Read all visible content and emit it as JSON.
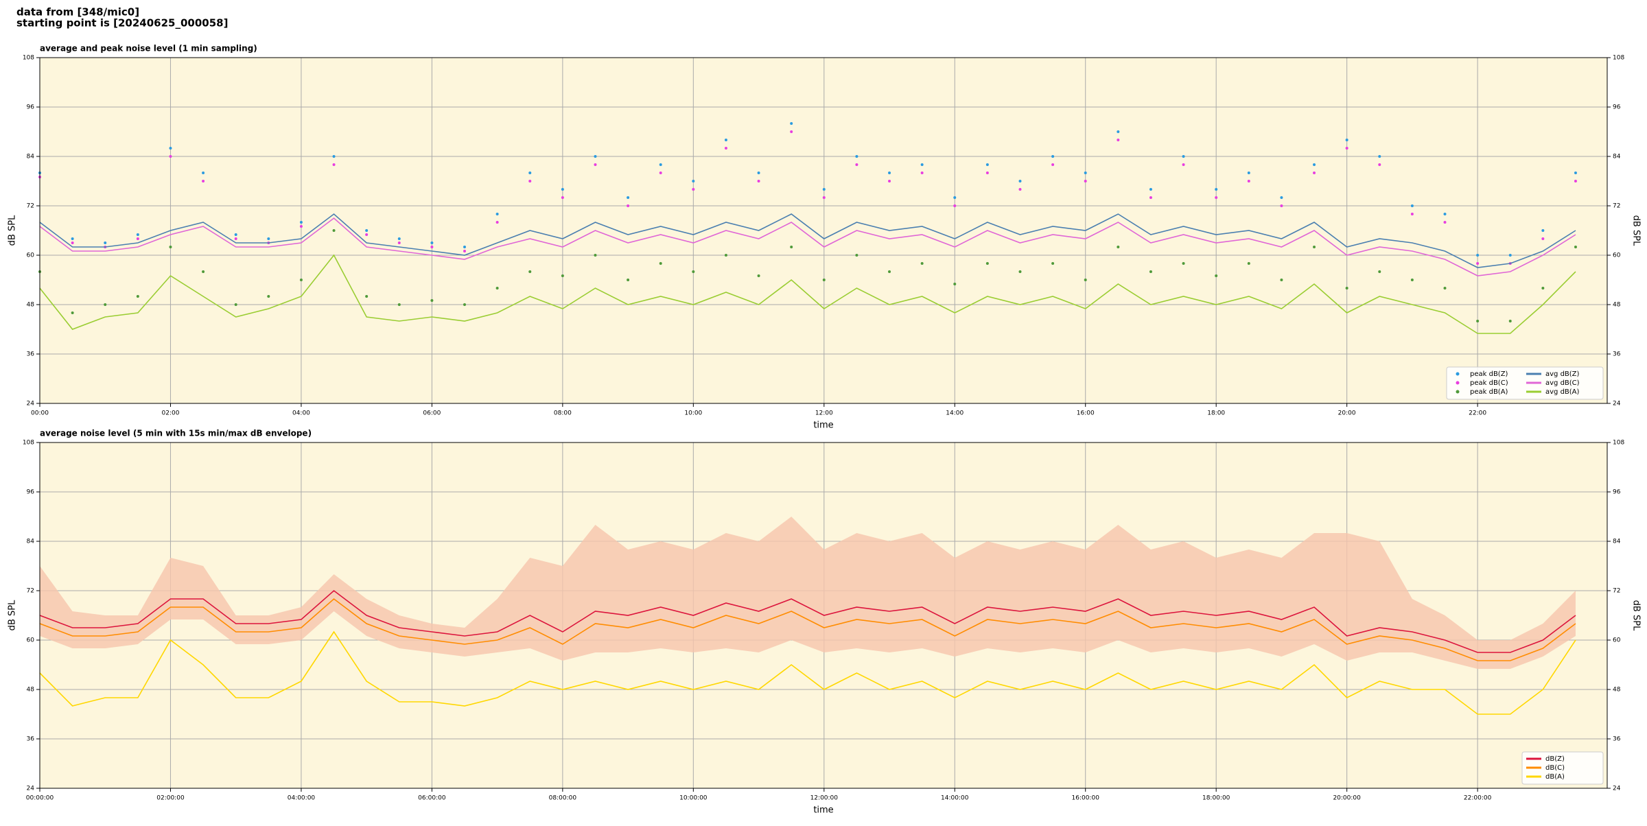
{
  "header": {
    "lines": [
      "data from [348/mic0]",
      "starting point is [20240625_000058]"
    ]
  },
  "chart_data": [
    {
      "type": "line",
      "title": "average and peak noise level (1 min sampling)",
      "x_label": "time",
      "y_label": "dB SPL",
      "y2_label": "dB SPL",
      "xlim": [
        "00:00",
        "23:59"
      ],
      "xticks": [
        "00:00",
        "02:00",
        "04:00",
        "06:00",
        "08:00",
        "10:00",
        "12:00",
        "14:00",
        "16:00",
        "18:00",
        "20:00",
        "22:00"
      ],
      "ylim": [
        24,
        108
      ],
      "yticks": [
        24,
        36,
        48,
        60,
        72,
        84,
        96,
        108
      ],
      "grid": true,
      "legend": "lower right",
      "legend_columns": 2,
      "background": "#fdf6dc",
      "x": [
        "00:00",
        "00:30",
        "01:00",
        "01:30",
        "02:00",
        "02:30",
        "03:00",
        "03:30",
        "04:00",
        "04:30",
        "05:00",
        "05:30",
        "06:00",
        "06:30",
        "07:00",
        "07:30",
        "08:00",
        "08:30",
        "09:00",
        "09:30",
        "10:00",
        "10:30",
        "11:00",
        "11:30",
        "12:00",
        "12:30",
        "13:00",
        "13:30",
        "14:00",
        "14:30",
        "15:00",
        "15:30",
        "16:00",
        "16:30",
        "17:00",
        "17:30",
        "18:00",
        "18:30",
        "19:00",
        "19:30",
        "20:00",
        "20:30",
        "21:00",
        "21:30",
        "22:00",
        "22:30",
        "23:00",
        "23:30"
      ],
      "series": [
        {
          "name": "peak dB(Z)",
          "style": "dots",
          "color": "#2b9be0",
          "values": [
            80,
            64,
            63,
            65,
            86,
            80,
            65,
            64,
            68,
            84,
            66,
            64,
            63,
            62,
            70,
            80,
            76,
            84,
            74,
            82,
            78,
            88,
            80,
            92,
            76,
            84,
            80,
            82,
            74,
            82,
            78,
            84,
            80,
            90,
            76,
            84,
            76,
            80,
            74,
            82,
            88,
            84,
            72,
            70,
            60,
            60,
            66,
            80
          ]
        },
        {
          "name": "peak dB(C)",
          "style": "dots",
          "color": "#e83ee0",
          "values": [
            79,
            63,
            62,
            64,
            84,
            78,
            64,
            63,
            67,
            82,
            65,
            63,
            62,
            61,
            68,
            78,
            74,
            82,
            72,
            80,
            76,
            86,
            78,
            90,
            74,
            82,
            78,
            80,
            72,
            80,
            76,
            82,
            78,
            88,
            74,
            82,
            74,
            78,
            72,
            80,
            86,
            82,
            70,
            68,
            58,
            58,
            64,
            78
          ]
        },
        {
          "name": "peak dB(A)",
          "style": "dots",
          "color": "#4f9a3a",
          "values": [
            56,
            46,
            48,
            50,
            62,
            56,
            48,
            50,
            54,
            66,
            50,
            48,
            49,
            48,
            52,
            56,
            55,
            60,
            54,
            58,
            56,
            60,
            55,
            62,
            54,
            60,
            56,
            58,
            53,
            58,
            56,
            58,
            54,
            62,
            56,
            58,
            55,
            58,
            54,
            62,
            52,
            56,
            54,
            52,
            44,
            44,
            52,
            62
          ]
        },
        {
          "name": "avg dB(Z)",
          "style": "line",
          "color": "#4a7fb0",
          "values": [
            68,
            62,
            62,
            63,
            66,
            68,
            63,
            63,
            64,
            70,
            63,
            62,
            61,
            60,
            63,
            66,
            64,
            68,
            65,
            67,
            65,
            68,
            66,
            70,
            64,
            68,
            66,
            67,
            64,
            68,
            65,
            67,
            66,
            70,
            65,
            67,
            65,
            66,
            64,
            68,
            62,
            64,
            63,
            61,
            57,
            58,
            61,
            66
          ]
        },
        {
          "name": "avg dB(C)",
          "style": "line",
          "color": "#e066d6",
          "values": [
            67,
            61,
            61,
            62,
            65,
            67,
            62,
            62,
            63,
            69,
            62,
            61,
            60,
            59,
            62,
            64,
            62,
            66,
            63,
            65,
            63,
            66,
            64,
            68,
            62,
            66,
            64,
            65,
            62,
            66,
            63,
            65,
            64,
            68,
            63,
            65,
            63,
            64,
            62,
            66,
            60,
            62,
            61,
            59,
            55,
            56,
            60,
            65
          ]
        },
        {
          "name": "avg dB(A)",
          "style": "line",
          "color": "#9acd32",
          "values": [
            52,
            42,
            45,
            46,
            55,
            50,
            45,
            47,
            50,
            60,
            45,
            44,
            45,
            44,
            46,
            50,
            47,
            52,
            48,
            50,
            48,
            51,
            48,
            54,
            47,
            52,
            48,
            50,
            46,
            50,
            48,
            50,
            47,
            53,
            48,
            50,
            48,
            50,
            47,
            53,
            46,
            50,
            48,
            46,
            41,
            41,
            48,
            56
          ]
        }
      ]
    },
    {
      "type": "line",
      "title": "average noise level (5 min with 15s min/max dB envelope)",
      "x_label": "time",
      "y_label": "dB SPL",
      "y2_label": "dB SPL",
      "xlim": [
        "00:00:00",
        "23:59:00"
      ],
      "xticks": [
        "00:00:00",
        "02:00:00",
        "04:00:00",
        "06:00:00",
        "08:00:00",
        "10:00:00",
        "12:00:00",
        "14:00:00",
        "16:00:00",
        "18:00:00",
        "20:00:00",
        "22:00:00"
      ],
      "ylim": [
        24,
        108
      ],
      "yticks": [
        24,
        36,
        48,
        60,
        72,
        84,
        96,
        108
      ],
      "grid": true,
      "legend": "lower right",
      "legend_columns": 1,
      "background": "#fdf6dc",
      "x": [
        "00:00:00",
        "00:30:00",
        "01:00:00",
        "01:30:00",
        "02:00:00",
        "02:30:00",
        "03:00:00",
        "03:30:00",
        "04:00:00",
        "04:30:00",
        "05:00:00",
        "05:30:00",
        "06:00:00",
        "06:30:00",
        "07:00:00",
        "07:30:00",
        "08:00:00",
        "08:30:00",
        "09:00:00",
        "09:30:00",
        "10:00:00",
        "10:30:00",
        "11:00:00",
        "11:30:00",
        "12:00:00",
        "12:30:00",
        "13:00:00",
        "13:30:00",
        "14:00:00",
        "14:30:00",
        "15:00:00",
        "15:30:00",
        "16:00:00",
        "16:30:00",
        "17:00:00",
        "17:30:00",
        "18:00:00",
        "18:30:00",
        "19:00:00",
        "19:30:00",
        "20:00:00",
        "20:30:00",
        "21:00:00",
        "21:30:00",
        "22:00:00",
        "22:30:00",
        "23:00:00",
        "23:30:00"
      ],
      "band": {
        "color": "#f6c6ad",
        "high": [
          78,
          67,
          66,
          66,
          80,
          78,
          66,
          66,
          68,
          76,
          70,
          66,
          64,
          63,
          70,
          80,
          78,
          88,
          82,
          84,
          82,
          86,
          84,
          90,
          82,
          86,
          84,
          86,
          80,
          84,
          82,
          84,
          82,
          88,
          82,
          84,
          80,
          82,
          80,
          86,
          86,
          84,
          70,
          66,
          60,
          60,
          64,
          72
        ],
        "low": [
          61,
          58,
          58,
          59,
          65,
          65,
          59,
          59,
          60,
          67,
          61,
          58,
          57,
          56,
          57,
          58,
          55,
          57,
          57,
          58,
          57,
          58,
          57,
          60,
          57,
          58,
          57,
          58,
          56,
          58,
          57,
          58,
          57,
          60,
          57,
          58,
          57,
          58,
          56,
          59,
          55,
          57,
          57,
          55,
          53,
          53,
          56,
          61
        ]
      },
      "series": [
        {
          "name": "dB(Z)",
          "style": "line",
          "color": "#dc143c",
          "values": [
            66,
            63,
            63,
            64,
            70,
            70,
            64,
            64,
            65,
            72,
            66,
            63,
            62,
            61,
            62,
            66,
            62,
            67,
            66,
            68,
            66,
            69,
            67,
            70,
            66,
            68,
            67,
            68,
            64,
            68,
            67,
            68,
            67,
            70,
            66,
            67,
            66,
            67,
            65,
            68,
            61,
            63,
            62,
            60,
            57,
            57,
            60,
            66
          ]
        },
        {
          "name": "dB(C)",
          "style": "line",
          "color": "#ff8c00",
          "values": [
            64,
            61,
            61,
            62,
            68,
            68,
            62,
            62,
            63,
            70,
            64,
            61,
            60,
            59,
            60,
            63,
            59,
            64,
            63,
            65,
            63,
            66,
            64,
            67,
            63,
            65,
            64,
            65,
            61,
            65,
            64,
            65,
            64,
            67,
            63,
            64,
            63,
            64,
            62,
            65,
            59,
            61,
            60,
            58,
            55,
            55,
            58,
            64
          ]
        },
        {
          "name": "dB(A)",
          "style": "line",
          "color": "#ffd700",
          "values": [
            52,
            44,
            46,
            46,
            60,
            54,
            46,
            46,
            50,
            62,
            50,
            45,
            45,
            44,
            46,
            50,
            48,
            50,
            48,
            50,
            48,
            50,
            48,
            54,
            48,
            52,
            48,
            50,
            46,
            50,
            48,
            50,
            48,
            52,
            48,
            50,
            48,
            50,
            48,
            54,
            46,
            50,
            48,
            48,
            42,
            42,
            48,
            60
          ]
        }
      ]
    }
  ]
}
